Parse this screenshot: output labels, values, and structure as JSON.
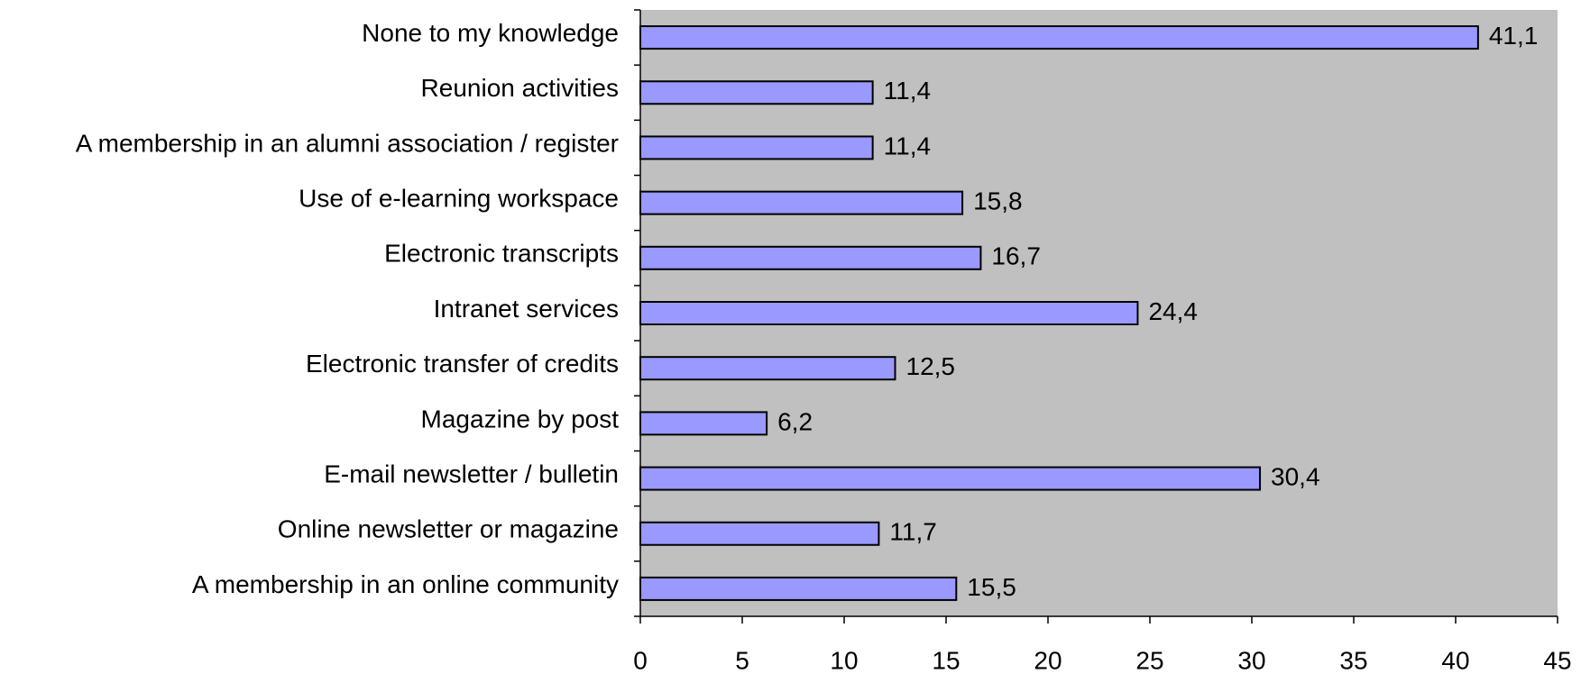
{
  "chart_data": {
    "type": "hbar",
    "categories": [
      "None to my knowledge",
      "Reunion activities",
      "A membership in an alumni association / register",
      "Use of e-learning workspace",
      "Electronic transcripts",
      "Intranet services",
      "Electronic transfer of credits",
      "Magazine by post",
      "E-mail newsletter / bulletin",
      "Online newsletter or magazine",
      "A membership in an online community"
    ],
    "values": [
      41.1,
      11.4,
      11.4,
      15.8,
      16.7,
      24.4,
      12.5,
      6.2,
      30.4,
      11.7,
      15.5
    ],
    "value_labels": [
      "41,1",
      "11,4",
      "11,4",
      "15,8",
      "16,7",
      "24,4",
      "12,5",
      "6,2",
      "30,4",
      "11,7",
      "15,5"
    ],
    "color": "#9999ff",
    "plot_background": "#c0c0c0",
    "xlim": [
      0,
      45
    ],
    "xticks": [
      0,
      5,
      10,
      15,
      20,
      25,
      30,
      35,
      40,
      45
    ],
    "grid": false
  }
}
